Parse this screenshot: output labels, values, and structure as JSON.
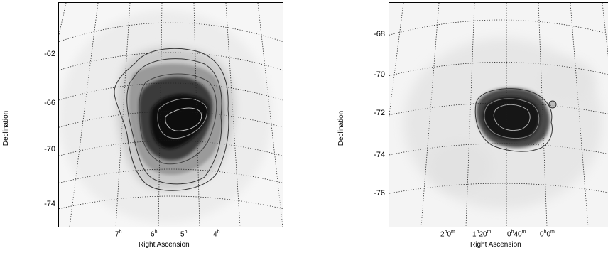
{
  "left_map": {
    "xlabel": "Right Ascension",
    "ylabel": "Declination",
    "dec_ticks": [
      "-62",
      "-66",
      "-70",
      "-74"
    ],
    "ra_ticks": [
      {
        "h": "7",
        "u": "h"
      },
      {
        "h": "6",
        "u": "h"
      },
      {
        "h": "5",
        "u": "h"
      },
      {
        "h": "4",
        "u": "h"
      }
    ]
  },
  "right_map": {
    "xlabel": "Right Ascension",
    "ylabel": "Declination",
    "dec_ticks": [
      "-68",
      "-70",
      "-72",
      "-74",
      "-76"
    ],
    "ra_ticks": [
      {
        "h": "2",
        "hu": "h",
        "m": "0",
        "mu": "m"
      },
      {
        "h": "1",
        "hu": "h",
        "m": "20",
        "mu": "m"
      },
      {
        "h": "0",
        "hu": "h",
        "m": "40",
        "mu": "m"
      },
      {
        "h": "0",
        "hu": "h",
        "m": "0",
        "mu": "m"
      }
    ]
  },
  "colors": {
    "background": "#ffffff",
    "grid": "#222222",
    "contour_dark": "#333333",
    "contour_light": "#bbbbbb"
  }
}
